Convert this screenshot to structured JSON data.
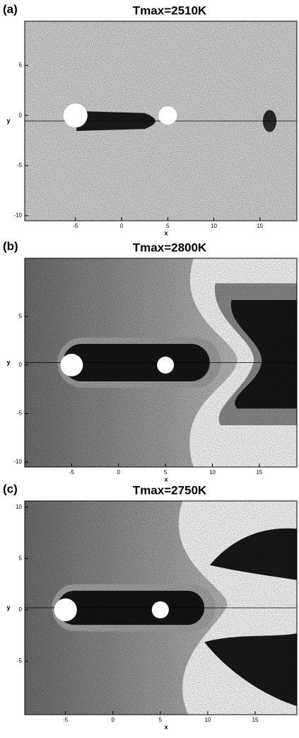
{
  "chart_data": [
    {
      "type": "contour",
      "panel_label": "(a)",
      "title": "Tmax=2510K",
      "x_label": "x",
      "y_label": "y",
      "xlim": [
        -10.5,
        19
      ],
      "ylim": [
        -10.5,
        9.4
      ],
      "xticks": [
        -5,
        0,
        5,
        10,
        15
      ],
      "yticks": [
        -10,
        -5,
        0,
        5
      ],
      "markers": [
        {
          "x": -5,
          "y": 0,
          "r": 1.3
        },
        {
          "x": 5,
          "y": 0,
          "r": 1.0
        }
      ]
    },
    {
      "type": "contour",
      "panel_label": "(b)",
      "title": "Tmax=2800K",
      "x_label": "x",
      "y_label": "y",
      "xlim": [
        -10,
        19
      ],
      "ylim": [
        -10.5,
        11
      ],
      "xticks": [
        -5,
        0,
        5,
        10,
        15
      ],
      "yticks": [
        -10,
        -5,
        0,
        5
      ],
      "markers": [
        {
          "x": -5,
          "y": 0,
          "r": 1.2
        },
        {
          "x": 5,
          "y": 0,
          "r": 0.9
        }
      ]
    },
    {
      "type": "contour",
      "panel_label": "(c)",
      "title": "Tmax=2750K",
      "x_label": "x",
      "y_label": "y",
      "xlim": [
        -9.3,
        19.4
      ],
      "ylim": [
        -10.2,
        10.6
      ],
      "xticks": [
        -5,
        0,
        5,
        10,
        15
      ],
      "yticks": [
        -5,
        0,
        5,
        10
      ],
      "markers": [
        {
          "x": -5,
          "y": 0,
          "r": 1.2
        },
        {
          "x": 5,
          "y": 0,
          "r": 0.9
        }
      ]
    }
  ]
}
